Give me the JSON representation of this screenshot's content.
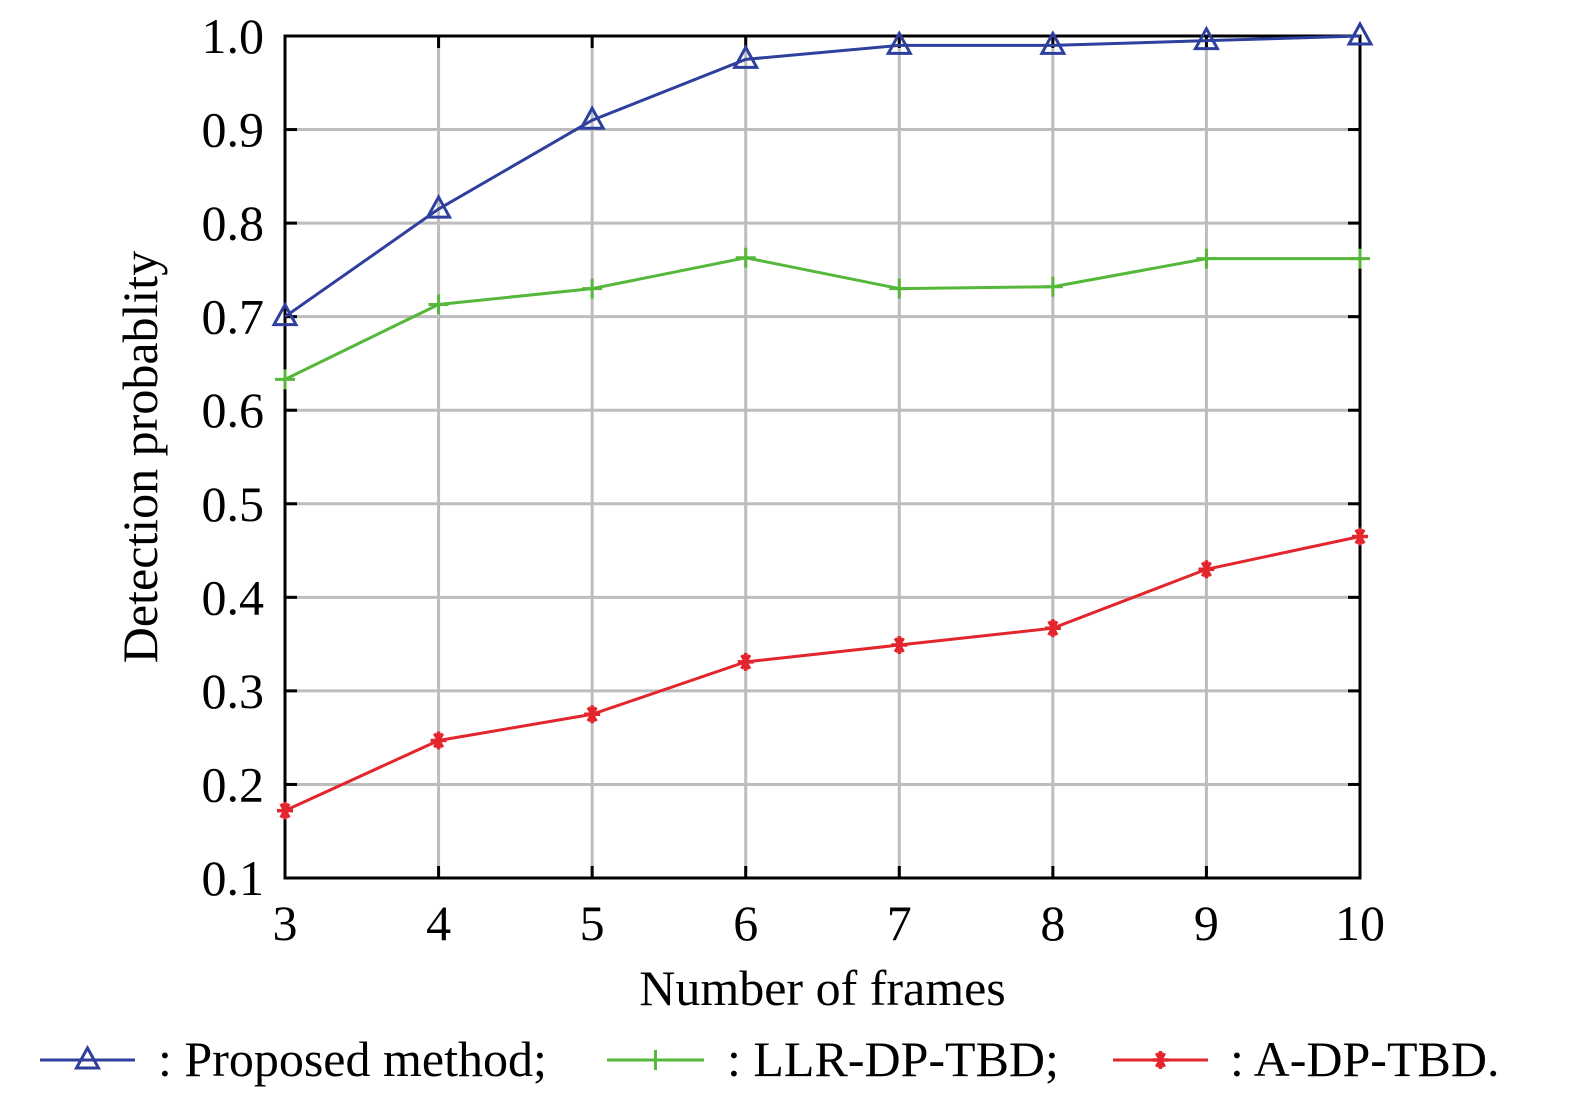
{
  "chart_data": {
    "type": "line",
    "xlabel": "Number of frames",
    "ylabel": "Detection probablity",
    "xlim": [
      3,
      10
    ],
    "ylim": [
      0.1,
      1.0
    ],
    "x_ticks": [
      "3",
      "4",
      "5",
      "6",
      "7",
      "8",
      "9",
      "10"
    ],
    "y_ticks": [
      "0.1",
      "0.2",
      "0.3",
      "0.4",
      "0.5",
      "0.6",
      "0.7",
      "0.8",
      "0.9",
      "1.0"
    ],
    "grid": true,
    "legend_position": "bottom",
    "x": [
      3,
      4,
      5,
      6,
      7,
      8,
      9,
      10
    ],
    "series": [
      {
        "name": "Proposed method",
        "legend_label": ": Proposed method;",
        "marker": "triangle",
        "color": "#2e3f9e",
        "values": [
          0.7,
          0.815,
          0.91,
          0.975,
          0.99,
          0.99,
          0.995,
          1.0
        ]
      },
      {
        "name": "LLR-DP-TBD",
        "legend_label": ": LLR-DP-TBD;",
        "marker": "plus",
        "color": "#55b83a",
        "values": [
          0.633,
          0.713,
          0.73,
          0.763,
          0.73,
          0.732,
          0.762,
          0.762
        ]
      },
      {
        "name": "A-DP-TBD",
        "legend_label": ": A-DP-TBD.",
        "marker": "asterisk",
        "color": "#e3262d",
        "values": [
          0.172,
          0.247,
          0.275,
          0.331,
          0.349,
          0.367,
          0.43,
          0.465
        ]
      }
    ]
  }
}
